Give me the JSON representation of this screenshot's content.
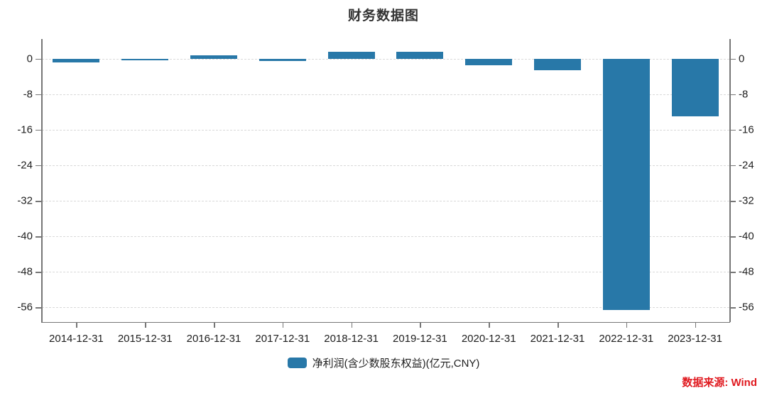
{
  "title": "财务数据图",
  "source_note": "数据来源: Wind",
  "legend": {
    "label": "净利润(含少数股东权益)(亿元,CNY)"
  },
  "colors": {
    "bar": "#2878a8",
    "title": "#333333",
    "tick_text": "#1f1f1f",
    "grid": "#d9d9d9",
    "spine": "#767676",
    "source_red": "#e0191f"
  },
  "chart_data": {
    "type": "bar",
    "title": "财务数据图",
    "categories": [
      "2014-12-31",
      "2015-12-31",
      "2016-12-31",
      "2017-12-31",
      "2018-12-31",
      "2019-12-31",
      "2020-12-31",
      "2021-12-31",
      "2022-12-31",
      "2023-12-31"
    ],
    "series": [
      {
        "name": "净利润(含少数股东权益)(亿元,CNY)",
        "values": [
          -0.8,
          -0.3,
          0.7,
          -0.6,
          1.6,
          1.5,
          -1.5,
          -2.7,
          -56.5,
          -13.0
        ]
      }
    ],
    "xlabel": "",
    "ylabel": "",
    "yticks": [
      0,
      -8,
      -16,
      -24,
      -32,
      -40,
      -48,
      -56
    ],
    "ylim": [
      4.4,
      -59.2
    ],
    "grid": "horizontal-dashed",
    "legend_position": "bottom",
    "y_axis_sides": "both"
  }
}
